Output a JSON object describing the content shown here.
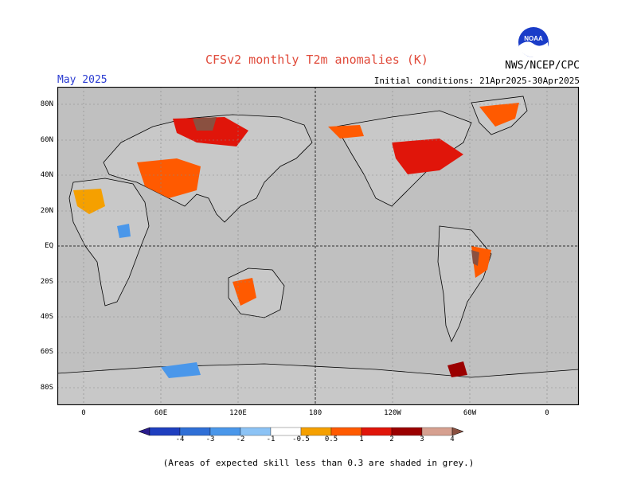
{
  "title": "CFSv2 monthly T2m anomalies (K)",
  "month": "May 2025",
  "initial_conditions": "Initial conditions: 21Apr2025-30Apr2025",
  "agency": "NWS/NCEP/CPC",
  "logo_text": "NOAA",
  "footnote": "(Areas of expected skill less than 0.3 are shaded in grey.)",
  "lat_labels": [
    "80N",
    "60N",
    "40N",
    "20N",
    "EQ",
    "20S",
    "40S",
    "60S",
    "80S"
  ],
  "lon_labels": [
    "0",
    "60E",
    "120E",
    "180",
    "120W",
    "60W",
    "0"
  ],
  "legend": {
    "labels": [
      "-4",
      "-3",
      "-2",
      "-1",
      "-0.5",
      "0.5",
      "1",
      "2",
      "3",
      "4"
    ],
    "colors": [
      "#2a1c8c",
      "#1f3fbf",
      "#2f6fd6",
      "#4a97ea",
      "#8cc3f5",
      "#ffffff",
      "#f5a000",
      "#ff5a00",
      "#e0150a",
      "#9b0000",
      "#d6a090",
      "#8a5040"
    ]
  },
  "colors": {
    "ocean_grey": "#c0c0c0",
    "low_skill_grey": "#c8c8c8",
    "land_neutral": "#ffffff"
  }
}
